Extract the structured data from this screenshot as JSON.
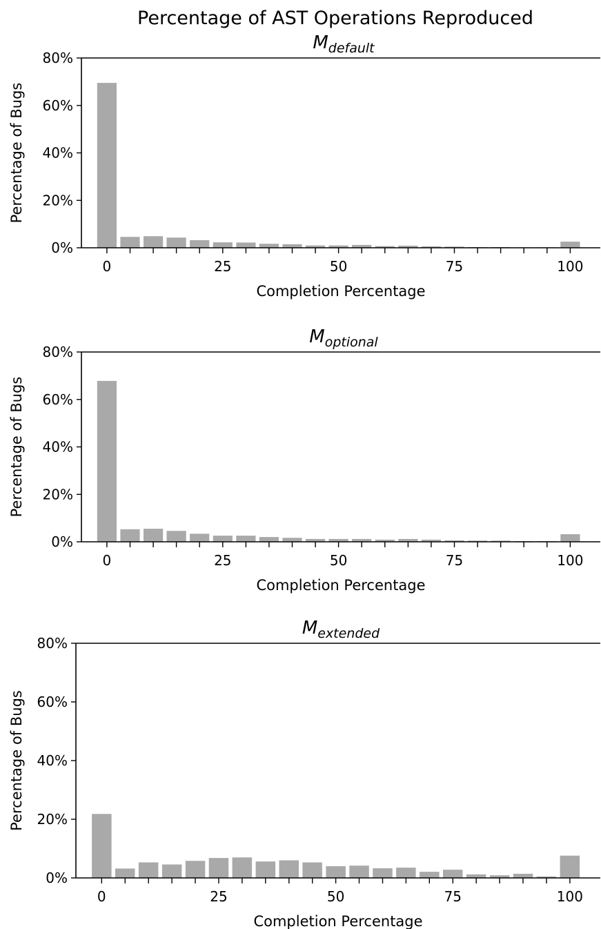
{
  "title": "Percentage of AST Operations Reproduced",
  "colors": {
    "bar": "#a9a9a9",
    "axis": "#000000",
    "background": "#ffffff"
  },
  "chart_data": [
    {
      "type": "bar",
      "title_main": "M",
      "title_sub": "default",
      "xlabel": "Completion Percentage",
      "ylabel": "Percentage of Bugs",
      "ylim": [
        0,
        80
      ],
      "y_ticks": [
        "0%",
        "20%",
        "40%",
        "60%",
        "80%"
      ],
      "x_ticks": [
        "0",
        "25",
        "50",
        "75",
        "100"
      ],
      "x": [
        0,
        5,
        10,
        15,
        20,
        25,
        30,
        35,
        40,
        45,
        50,
        55,
        60,
        65,
        70,
        75,
        80,
        85,
        90,
        95,
        100
      ],
      "values": [
        69.5,
        4.6,
        4.9,
        4.3,
        3.2,
        2.3,
        2.2,
        1.7,
        1.5,
        1.0,
        1.0,
        1.2,
        0.7,
        0.9,
        0.6,
        0.5,
        0.3,
        0.3,
        0.2,
        0.2,
        2.6
      ]
    },
    {
      "type": "bar",
      "title_main": "M",
      "title_sub": "optional",
      "xlabel": "Completion Percentage",
      "ylabel": "Percentage of Bugs",
      "ylim": [
        0,
        80
      ],
      "y_ticks": [
        "0%",
        "20%",
        "40%",
        "60%",
        "80%"
      ],
      "x_ticks": [
        "0",
        "25",
        "50",
        "75",
        "100"
      ],
      "x": [
        0,
        5,
        10,
        15,
        20,
        25,
        30,
        35,
        40,
        45,
        50,
        55,
        60,
        65,
        70,
        75,
        80,
        85,
        90,
        95,
        100
      ],
      "values": [
        67.8,
        5.3,
        5.5,
        4.6,
        3.4,
        2.6,
        2.6,
        2.0,
        1.7,
        1.2,
        1.2,
        1.2,
        0.9,
        1.2,
        0.9,
        0.6,
        0.5,
        0.5,
        0.3,
        0.3,
        3.2
      ]
    },
    {
      "type": "bar",
      "title_main": "M",
      "title_sub": "extended",
      "xlabel": "Completion Percentage",
      "ylabel": "Percentage of Bugs",
      "ylim": [
        0,
        80
      ],
      "y_ticks": [
        "0%",
        "20%",
        "40%",
        "60%",
        "80%"
      ],
      "x_ticks": [
        "0",
        "25",
        "50",
        "75",
        "100"
      ],
      "x": [
        0,
        5,
        10,
        15,
        20,
        25,
        30,
        35,
        40,
        45,
        50,
        55,
        60,
        65,
        70,
        75,
        80,
        85,
        90,
        95,
        100
      ],
      "values": [
        21.8,
        3.2,
        5.3,
        4.6,
        5.8,
        6.8,
        7.0,
        5.6,
        6.0,
        5.3,
        4.0,
        4.2,
        3.3,
        3.5,
        2.1,
        2.8,
        1.2,
        0.9,
        1.4,
        0.5,
        7.6
      ]
    }
  ]
}
